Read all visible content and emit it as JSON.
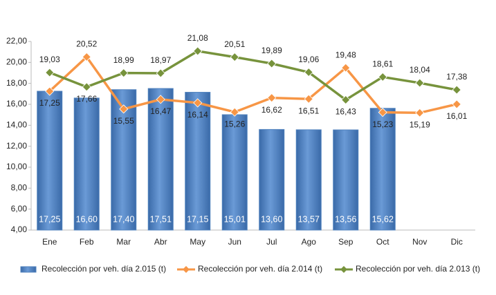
{
  "chart_data": {
    "type": "bar-line",
    "categories": [
      "Ene",
      "Feb",
      "Mar",
      "Abr",
      "May",
      "Jun",
      "Jul",
      "Ago",
      "Sep",
      "Oct",
      "Nov",
      "Dic"
    ],
    "series": [
      {
        "name": "Recolección por veh. día 2.015 (t)",
        "kind": "bar",
        "color": "#4f81bd",
        "values": [
          17.25,
          16.6,
          17.4,
          17.51,
          17.15,
          15.01,
          13.6,
          13.57,
          13.56,
          15.62,
          null,
          null
        ],
        "value_labels": [
          "17,25",
          "16,60",
          "17,40",
          "17,51",
          "17,15",
          "15,01",
          "13,60",
          "13,57",
          "13,56",
          "15,62",
          null,
          null
        ]
      },
      {
        "name": "Recolección por veh. día 2.014 (t)",
        "kind": "line",
        "color": "#f79646",
        "values": [
          17.25,
          20.52,
          15.55,
          16.47,
          16.14,
          15.26,
          16.62,
          16.51,
          19.48,
          15.23,
          15.19,
          16.01
        ],
        "value_labels": [
          "17,25",
          "20,52",
          "15,55",
          "16,47",
          "16,14",
          "15,26",
          "16,62",
          "16,51",
          "19,48",
          "15,23",
          "15,19",
          "16,01"
        ]
      },
      {
        "name": "Recolección por veh. día 2.013 (t)",
        "kind": "line",
        "color": "#77933c",
        "values": [
          19.03,
          17.66,
          18.99,
          18.97,
          21.08,
          20.51,
          19.89,
          19.06,
          16.43,
          18.61,
          18.04,
          17.38
        ],
        "value_labels": [
          "19,03",
          "17,66",
          "18,99",
          "18,97",
          "21,08",
          "20,51",
          "19,89",
          "19,06",
          "16,43",
          "18,61",
          "18,04",
          "17,38"
        ]
      }
    ],
    "ylim": [
      4,
      22
    ],
    "yticks": [
      {
        "value": 4,
        "label": "4,00"
      },
      {
        "value": 6,
        "label": "6,00"
      },
      {
        "value": 8,
        "label": "8,00"
      },
      {
        "value": 10,
        "label": "10,00"
      },
      {
        "value": 12,
        "label": "12,00"
      },
      {
        "value": 14,
        "label": "14,00"
      },
      {
        "value": 16,
        "label": "16,00"
      },
      {
        "value": 18,
        "label": "18,00"
      },
      {
        "value": 20,
        "label": "20,00"
      },
      {
        "value": 22,
        "label": "22,00"
      }
    ],
    "grid": false,
    "legend": "bottom"
  }
}
